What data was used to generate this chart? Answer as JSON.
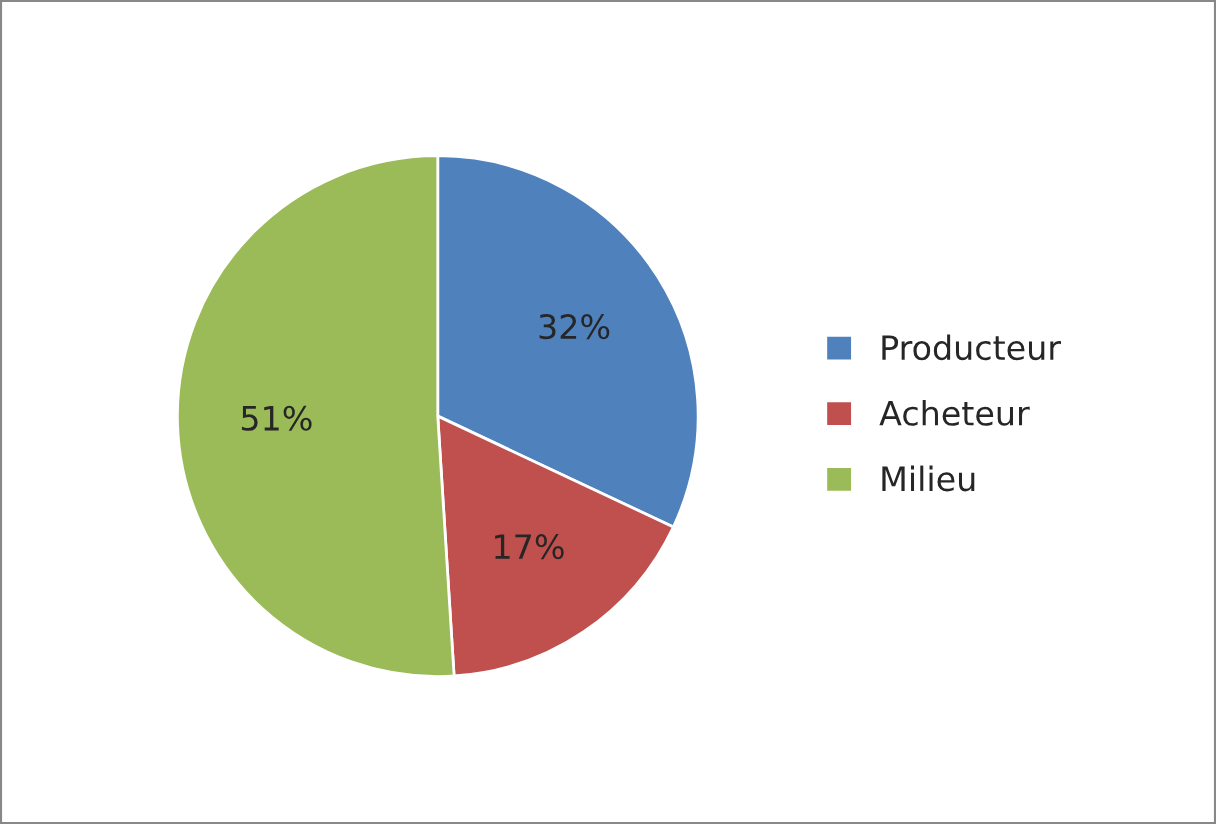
{
  "chart_data": {
    "type": "pie",
    "categories": [
      "Producteur",
      "Acheteur",
      "Milieu"
    ],
    "values": [
      32,
      17,
      51
    ],
    "value_labels": [
      "32%",
      "17%",
      "51%"
    ],
    "colors": [
      "#4f81bd",
      "#c0504d",
      "#9bbb59"
    ],
    "legend": "right"
  }
}
